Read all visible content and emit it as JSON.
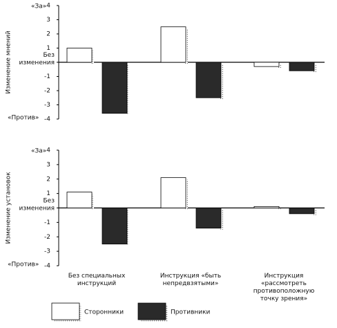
{
  "chart_data": [
    {
      "type": "bar",
      "y_label": "Изменение мнений",
      "top_label": "«За»",
      "bottom_label": "«Против»",
      "categories": [
        null,
        null,
        null
      ],
      "series": [
        {
          "color": "#ffffff",
          "values": [
            1.0,
            2.5,
            -0.3
          ]
        },
        {
          "color": "#2a2a2a",
          "values": [
            -3.6,
            -2.5,
            -0.6
          ]
        }
      ],
      "ylim": [
        -4,
        4
      ],
      "yticks": [
        -4,
        -3,
        -2,
        -1,
        {
          "value": 0,
          "label": "Без изменения"
        },
        1,
        2,
        3,
        4
      ]
    },
    {
      "type": "bar",
      "y_label": "Изменение установок",
      "top_label": "«За»",
      "bottom_label": "«Против»",
      "categories": [
        "Без специальных инструкций",
        "Инструкция «быть непредвзятыми»",
        "Инструкция «рассмотреть противоположную точку зрения»"
      ],
      "series": [
        {
          "name": "Сторонники",
          "color": "#ffffff",
          "values": [
            1.1,
            2.1,
            0.1
          ]
        },
        {
          "name": "Противники",
          "color": "#2a2a2a",
          "values": [
            -2.5,
            -1.4,
            -0.4
          ]
        }
      ],
      "ylim": [
        -4,
        4
      ],
      "yticks": [
        -4,
        -3,
        -2,
        -1,
        {
          "value": 0,
          "label": "Без изменения"
        },
        1,
        2,
        3,
        4
      ]
    }
  ]
}
